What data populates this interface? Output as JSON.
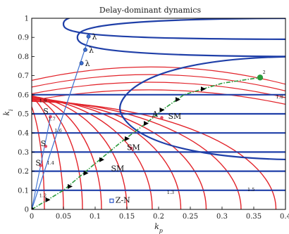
{
  "chart_data": {
    "type": "line",
    "title": "Delay-dominant dynamics",
    "xlabel": "k_p",
    "ylabel": "k_i",
    "xlim": [
      0,
      0.4
    ],
    "ylim": [
      0,
      1
    ],
    "xticks": [
      "0",
      "0.05",
      "0.1",
      "0.15",
      "0.2",
      "0.25",
      "0.3",
      "0.35",
      "0.4"
    ],
    "yticks": [
      "0",
      "0.1",
      "0.2",
      "0.3",
      "0.4",
      "0.5",
      "0.6",
      "0.7",
      "0.8",
      "0.9",
      "1"
    ],
    "grid": false,
    "blue_horizontal_levels": [
      0.1,
      0.2,
      0.3,
      0.4,
      0.5,
      0.6
    ],
    "blue_ellipse_tips": [
      {
        "kp": 0.139,
        "ki": 0.53,
        "ki_top": 0.8
      },
      {
        "kp": 0.072,
        "ki": 0.9,
        "ki_top": 1.0
      },
      {
        "kp": 0.05,
        "ki": 0.97,
        "ki_top": 1.05
      }
    ],
    "red_contours": [
      {
        "label": "1.2",
        "kp_end": 0.02
      },
      {
        "label": "",
        "kp_end": 0.05
      },
      {
        "label": "",
        "kp_end": 0.08
      },
      {
        "label": "",
        "kp_end": 0.11
      },
      {
        "label": "",
        "kp_end": 0.15
      },
      {
        "label": "",
        "kp_end": 0.19
      },
      {
        "label": "1.3",
        "kp_end": 0.235
      },
      {
        "label": "",
        "kp_end": 0.275
      },
      {
        "label": "1.5",
        "kp_end": 0.33
      },
      {
        "label": "",
        "kp_end": 0.385
      }
    ],
    "contour_labels": [
      {
        "text": "1.9",
        "kp": 0.012,
        "ki": 0.56
      },
      {
        "text": "1.7",
        "kp": 0.026,
        "ki": 0.465
      },
      {
        "text": "1.6",
        "kp": 0.036,
        "ki": 0.405
      },
      {
        "text": "1.4",
        "kp": 0.024,
        "ki": 0.235
      },
      {
        "text": "1.2",
        "kp": 0.012,
        "ki": 0.065
      },
      {
        "text": "1.8",
        "kp": 0.385,
        "ki": 0.58
      },
      {
        "text": "1.3",
        "kp": 0.213,
        "ki": 0.08
      },
      {
        "text": "1.5",
        "kp": 0.34,
        "ki": 0.095
      },
      {
        "text": "2",
        "kp": 0.364,
        "ki": 0.71
      }
    ],
    "lambda_line": {
      "points": [
        [
          0,
          0
        ],
        [
          0.02,
          0.2
        ],
        [
          0.045,
          0.45
        ],
        [
          0.07,
          0.7
        ],
        [
          0.09,
          0.9
        ]
      ],
      "markers": [
        {
          "kp": 0.0895,
          "ki": 0.905,
          "label": "λ"
        },
        {
          "kp": 0.0845,
          "ki": 0.835,
          "label": "λ"
        },
        {
          "kp": 0.0785,
          "ki": 0.765,
          "label": "λ"
        }
      ]
    },
    "s_line": {
      "points": [
        [
          0,
          0
        ],
        [
          0.03,
          0.49
        ]
      ],
      "markers": [
        {
          "kp": 0.0295,
          "ki": 0.485,
          "label": "S"
        },
        {
          "kp": 0.022,
          "ki": 0.33,
          "label": "S"
        },
        {
          "kp": 0.014,
          "ki": 0.23,
          "label": "S"
        }
      ]
    },
    "optimization_path": {
      "series_style": "dash-dot green",
      "points": [
        [
          0,
          0
        ],
        [
          0.05,
          0.1
        ],
        [
          0.1,
          0.24
        ],
        [
          0.14,
          0.35
        ],
        [
          0.18,
          0.45
        ],
        [
          0.21,
          0.53
        ],
        [
          0.24,
          0.6
        ],
        [
          0.3,
          0.66
        ],
        [
          0.36,
          0.69
        ]
      ],
      "arrows": [
        [
          0.025,
          0.05
        ],
        [
          0.06,
          0.12
        ],
        [
          0.085,
          0.19
        ],
        [
          0.11,
          0.26
        ],
        [
          0.15,
          0.37
        ],
        [
          0.18,
          0.45
        ],
        [
          0.205,
          0.52
        ],
        [
          0.23,
          0.575
        ],
        [
          0.27,
          0.63
        ]
      ],
      "end_point": {
        "kp": 0.36,
        "ki": 0.69
      }
    },
    "annotations": [
      {
        "text": "S",
        "kp": 0.018,
        "ki": 0.5
      },
      {
        "text": "S",
        "kp": 0.014,
        "ki": 0.33
      },
      {
        "text": "S",
        "kp": 0.006,
        "ki": 0.23
      },
      {
        "text": "SM",
        "kp": 0.215,
        "ki": 0.475
      },
      {
        "text": "A",
        "kp": 0.19,
        "ki": 0.485
      },
      {
        "text": "SM",
        "kp": 0.15,
        "ki": 0.31
      },
      {
        "text": "SM",
        "kp": 0.125,
        "ki": 0.2
      },
      {
        "text": "Z-N",
        "kp": 0.132,
        "ki": 0.035
      }
    ],
    "special_points": [
      {
        "kp": 0.205,
        "ki": 0.48,
        "color": "#e0506a"
      },
      {
        "kp": 0.157,
        "ki": 0.32,
        "color": "#e0506a"
      },
      {
        "kp": 0.126,
        "ki": 0.045,
        "color": "#2a55c8",
        "shape": "square"
      }
    ],
    "colors": {
      "blue": "#1f3fa8",
      "red": "#e2232a",
      "green": "#2a9a3c",
      "lambda_blue": "#3a6fd0"
    }
  }
}
